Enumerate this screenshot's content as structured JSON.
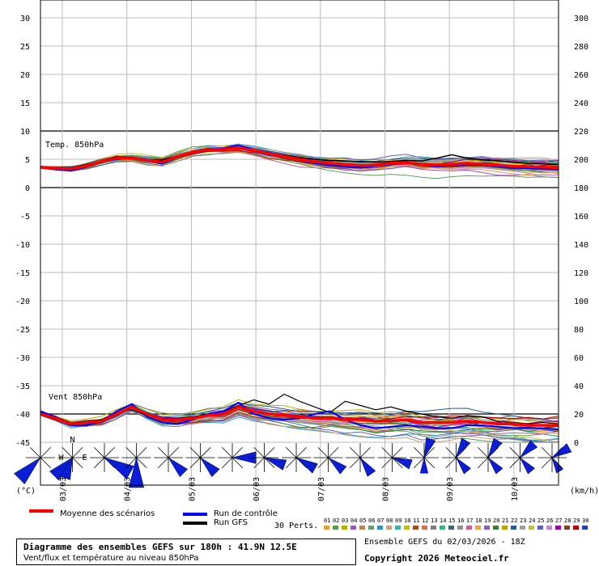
{
  "chart_data": {
    "type": "line",
    "title": "Diagramme des ensembles GEFS sur 180h : 41.9N 12.5E",
    "subtitle": "Vent/flux et température au niveau 850hPa",
    "left_axis": {
      "unit": "(°C)",
      "ticks": [
        30,
        25,
        20,
        15,
        10,
        5,
        0,
        -5,
        -10,
        -15,
        -20,
        -25,
        -30,
        -35,
        -40,
        -45
      ],
      "range": [
        -45,
        30
      ]
    },
    "right_axis": {
      "unit": "(km/h)",
      "ticks": [
        300,
        280,
        260,
        240,
        220,
        200,
        180,
        160,
        140,
        120,
        100,
        80,
        60,
        40,
        20,
        0
      ],
      "range": [
        0,
        300
      ]
    },
    "x_labels": [
      "03/03",
      "04/03",
      "05/03",
      "06/03",
      "07/03",
      "08/03",
      "09/03",
      "10/03"
    ],
    "temp_panel": {
      "label": "Temp. 850hPa",
      "mean": [
        3.6,
        3.4,
        3.3,
        3.8,
        4.6,
        5.2,
        5.2,
        4.8,
        4.5,
        5.5,
        6.3,
        6.7,
        6.8,
        7.0,
        6.6,
        6.0,
        5.5,
        5.0,
        4.6,
        4.3,
        4.1,
        3.9,
        4.0,
        4.3,
        4.4,
        4.1,
        4.0,
        4.1,
        4.3,
        4.2,
        4.0,
        3.8,
        3.7,
        3.6,
        3.5
      ],
      "control": [
        3.5,
        3.2,
        3.0,
        3.6,
        4.5,
        5.0,
        5.2,
        4.7,
        4.2,
        5.4,
        6.4,
        6.9,
        7.0,
        7.5,
        6.7,
        6.2,
        5.5,
        4.9,
        4.3,
        3.9,
        3.7,
        3.5,
        3.8,
        4.1,
        4.3,
        4.0,
        3.7,
        3.9,
        4.1,
        4.2,
        3.8,
        3.5,
        3.4,
        3.3,
        3.2
      ],
      "gfs": [
        3.7,
        3.5,
        3.5,
        4.0,
        4.7,
        5.4,
        5.3,
        4.9,
        4.9,
        5.6,
        6.2,
        6.5,
        6.8,
        7.1,
        6.7,
        6.1,
        5.7,
        5.3,
        5.0,
        4.8,
        4.7,
        4.6,
        4.5,
        4.6,
        4.8,
        4.7,
        5.2,
        5.8,
        5.2,
        4.9,
        4.7,
        4.5,
        4.3,
        4.2,
        4.1
      ]
    },
    "wind_panel": {
      "label": "Vent 850hPa",
      "mean": [
        20,
        17,
        13,
        14,
        15,
        20,
        25,
        20,
        16,
        16,
        17,
        19,
        20,
        25,
        22,
        20,
        19,
        18,
        17,
        17,
        16,
        16,
        15,
        15,
        16,
        14,
        14,
        14,
        15,
        14,
        13,
        13,
        12,
        12,
        12
      ],
      "control": [
        22,
        18,
        12,
        12,
        15,
        22,
        27,
        18,
        14,
        13,
        16,
        20,
        22,
        28,
        20,
        17,
        16,
        17,
        20,
        22,
        16,
        12,
        10,
        11,
        12,
        11,
        10,
        10,
        12,
        12,
        11,
        10,
        10,
        10,
        9
      ],
      "gfs": [
        21,
        18,
        14,
        15,
        16,
        21,
        23,
        19,
        17,
        17,
        18,
        20,
        22,
        26,
        30,
        27,
        34,
        29,
        25,
        21,
        29,
        26,
        23,
        25,
        22,
        20,
        18,
        17,
        19,
        18,
        15,
        14,
        13,
        14,
        13
      ]
    },
    "members": 30,
    "grid": true
  },
  "legend": {
    "mean_label": "Moyenne des scénarios",
    "control_label": "Run de contrôle",
    "gfs_label": "Run GFS",
    "perts_label": "30 Perts.",
    "mean_color": "#ff0000",
    "control_color": "#0000ff",
    "gfs_color": "#000000",
    "pert_numbers": [
      "01",
      "02",
      "03",
      "04",
      "05",
      "06",
      "07",
      "08",
      "09",
      "10",
      "11",
      "12",
      "13",
      "14",
      "15",
      "16",
      "17",
      "18",
      "19",
      "20",
      "21",
      "22",
      "23",
      "24",
      "25",
      "26",
      "27",
      "28",
      "29",
      "30"
    ],
    "pert_colors": [
      "#e8a030",
      "#50a050",
      "#b0b000",
      "#a050c0",
      "#c08050",
      "#60a060",
      "#3090d0",
      "#d0a070",
      "#40b0b0",
      "#c0c000",
      "#a05020",
      "#e07040",
      "#808080",
      "#20c080",
      "#406080",
      "#909090",
      "#c06090",
      "#f0a040",
      "#8060c0",
      "#308030",
      "#c0a000",
      "#2060a0",
      "#a0a0a0",
      "#c0c040",
      "#6060c0",
      "#d080d0",
      "#a000a0",
      "#804020",
      "#c00000",
      "#2040c0"
    ]
  },
  "footer": {
    "title": "Diagramme des ensembles GEFS sur 180h : 41.9N 12.5E",
    "subtitle": "Vent/flux et température au niveau 850hPa",
    "ensemble_date": "Ensemble GEFS du 02/03/2026 - 18Z",
    "copyright": "Copyright 2026 Meteociel.fr"
  },
  "compass": {
    "n": "N",
    "w": "W",
    "e": "E"
  },
  "wind_roses": [
    {
      "dirs": [
        225
      ],
      "len": [
        1.0
      ]
    },
    {
      "dirs": [
        225,
        200
      ],
      "len": [
        0.8,
        0.6
      ]
    },
    {
      "dirs": [
        120
      ],
      "len": [
        1.0
      ]
    },
    {
      "dirs": [
        180
      ],
      "len": [
        1.0
      ]
    },
    {
      "dirs": [
        135
      ],
      "len": [
        0.6
      ]
    },
    {
      "dirs": [
        135
      ],
      "len": [
        0.6
      ]
    },
    {
      "dirs": [
        90
      ],
      "len": [
        0.7
      ]
    },
    {
      "dirs": [
        110
      ],
      "len": [
        0.6
      ]
    },
    {
      "dirs": [
        120
      ],
      "len": [
        0.6
      ]
    },
    {
      "dirs": [
        130
      ],
      "len": [
        0.5
      ]
    },
    {
      "dirs": [
        145
      ],
      "len": [
        0.5
      ]
    },
    {
      "dirs": [
        110
      ],
      "len": [
        0.5
      ]
    },
    {
      "dirs": [
        20,
        180
      ],
      "len": [
        0.5,
        0.3
      ]
    },
    {
      "dirs": [
        30,
        140
      ],
      "len": [
        0.5,
        0.4
      ]
    },
    {
      "dirs": [
        30,
        140
      ],
      "len": [
        0.5,
        0.4
      ]
    },
    {
      "dirs": [
        45,
        140
      ],
      "len": [
        0.5,
        0.4
      ]
    },
    {
      "dirs": [
        60,
        150
      ],
      "len": [
        0.5,
        0.3
      ]
    }
  ]
}
